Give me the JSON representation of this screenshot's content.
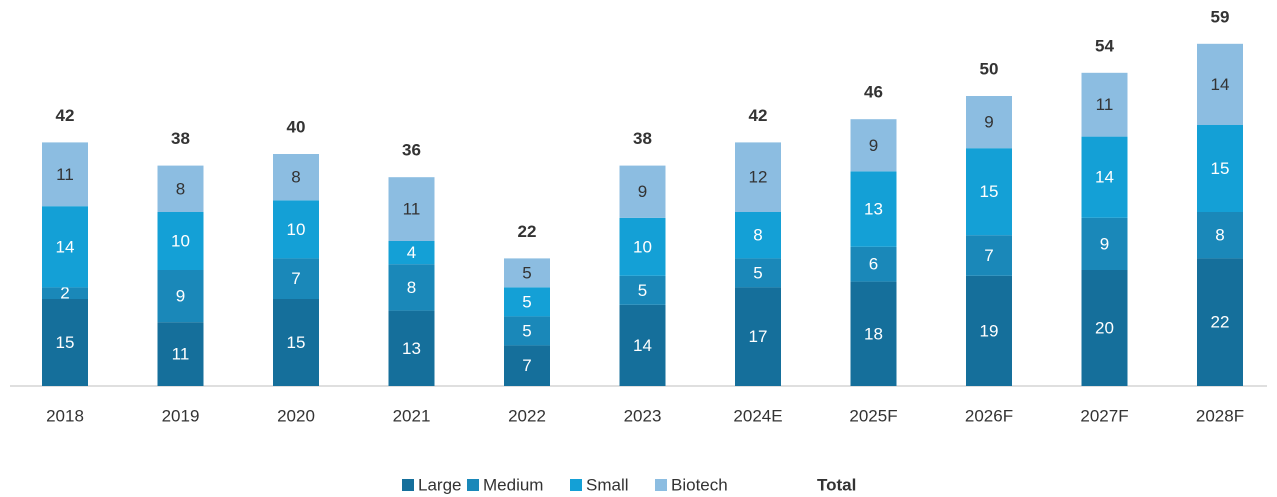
{
  "chart_data": {
    "type": "stacked_bar",
    "categories": [
      "2018",
      "2019",
      "2020",
      "2021",
      "2022",
      "2023",
      "2024E",
      "2025F",
      "2026F",
      "2027F",
      "2028F"
    ],
    "series": [
      {
        "name": "Large",
        "color": "#156f9b",
        "values": [
          15,
          11,
          15,
          13,
          7,
          14,
          17,
          18,
          19,
          20,
          22
        ]
      },
      {
        "name": "Medium",
        "color": "#1a88b9",
        "values": [
          2,
          9,
          7,
          8,
          5,
          5,
          5,
          6,
          7,
          9,
          8
        ]
      },
      {
        "name": "Small",
        "color": "#14a0d6",
        "values": [
          14,
          10,
          10,
          4,
          5,
          10,
          8,
          13,
          15,
          14,
          15
        ]
      },
      {
        "name": "Biotech",
        "color": "#8cbde1",
        "values": [
          11,
          8,
          8,
          11,
          5,
          9,
          12,
          9,
          9,
          11,
          14
        ]
      }
    ],
    "total": {
      "name": "Total",
      "values": [
        42,
        38,
        40,
        36,
        22,
        38,
        42,
        46,
        50,
        54,
        59
      ]
    },
    "ylim": [
      0,
      60
    ]
  }
}
